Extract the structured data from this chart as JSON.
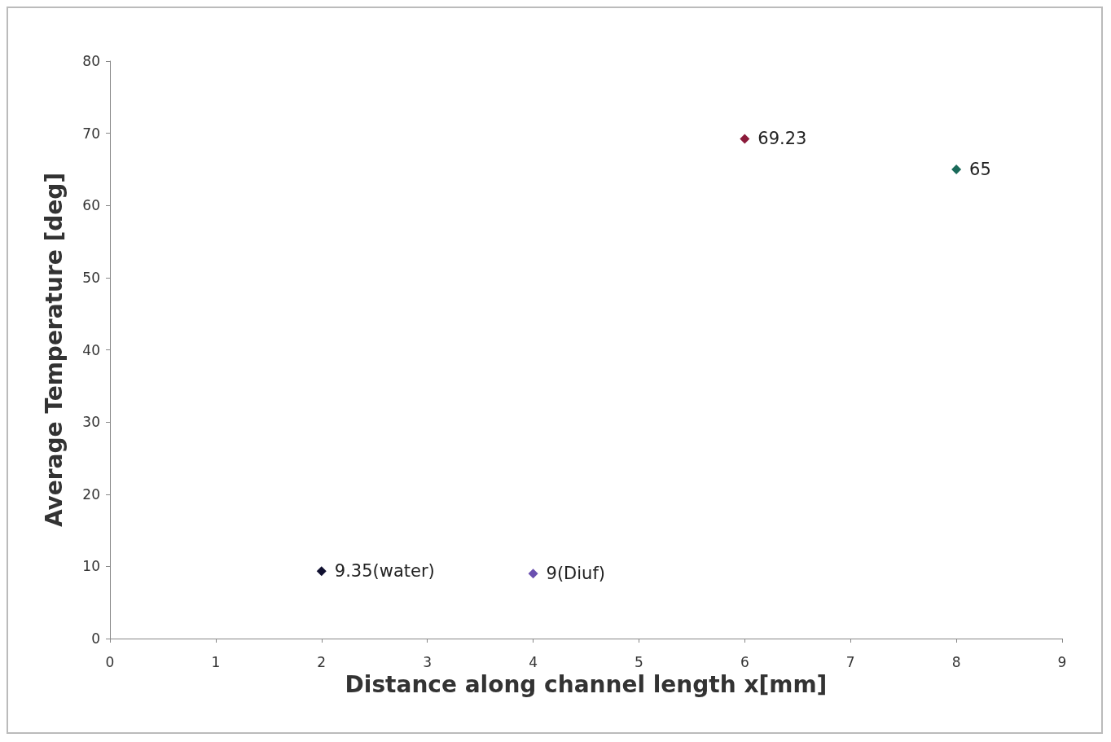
{
  "chart_data": {
    "type": "scatter",
    "xlabel": "Distance along channel length x[mm]",
    "ylabel": "Average Temperature [deg]",
    "xlim": [
      0,
      9
    ],
    "xticks": [
      0,
      1,
      2,
      3,
      4,
      5,
      6,
      7,
      8,
      9
    ],
    "ylim": [
      0,
      80
    ],
    "yticks": [
      0,
      10,
      20,
      30,
      40,
      50,
      60,
      70,
      80
    ],
    "grid": false,
    "marker": "diamond",
    "series": [
      {
        "color": "#101030",
        "x": [
          2
        ],
        "values": [
          9.35
        ],
        "value_labels": [
          "9.35(water)"
        ]
      },
      {
        "color": "#6a50b0",
        "x": [
          4
        ],
        "values": [
          9
        ],
        "value_labels": [
          "9(Diuf)"
        ]
      },
      {
        "color": "#8b1a3a",
        "x": [
          6
        ],
        "values": [
          69.23
        ],
        "value_labels": [
          "69.23"
        ]
      },
      {
        "color": "#1a6a5a",
        "x": [
          8
        ],
        "values": [
          65
        ],
        "value_labels": [
          "65"
        ]
      }
    ]
  }
}
